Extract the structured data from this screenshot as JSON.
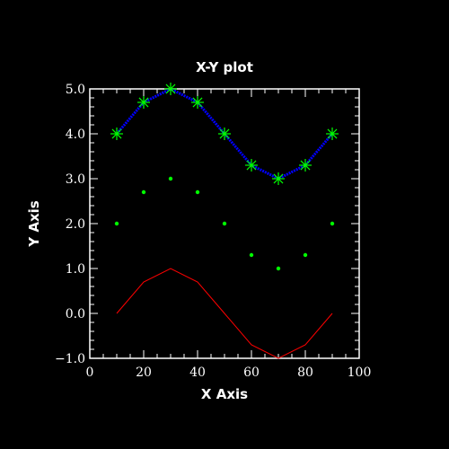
{
  "chart_data": {
    "type": "line",
    "title": "X-Y plot",
    "xlabel": "X Axis",
    "ylabel": "Y Axis",
    "xlim": [
      0,
      100
    ],
    "ylim": [
      -1.0,
      5.0
    ],
    "x_ticks": [
      "0",
      "20",
      "40",
      "60",
      "80",
      "100"
    ],
    "x_tick_values": [
      0,
      20,
      40,
      60,
      80,
      100
    ],
    "y_ticks": [
      "−1.0",
      "0.0",
      "1.0",
      "2.0",
      "3.0",
      "4.0",
      "5.0"
    ],
    "y_tick_values": [
      -1,
      0,
      1,
      2,
      3,
      4,
      5
    ],
    "grid": false,
    "x": [
      10,
      20,
      30,
      40,
      50,
      60,
      70,
      80,
      90
    ],
    "series": [
      {
        "style": "line+star",
        "line_color": "#0000ff",
        "marker_color": "#00ff00",
        "values": [
          4.0,
          4.7,
          5.0,
          4.7,
          4.0,
          3.3,
          3.0,
          3.3,
          4.0
        ]
      },
      {
        "style": "dots",
        "marker_color": "#00ff00",
        "values": [
          2.0,
          2.7,
          3.0,
          2.7,
          2.0,
          1.3,
          1.0,
          1.3,
          2.0
        ]
      },
      {
        "style": "line",
        "line_color": "#ff0000",
        "values": [
          0.0,
          0.7,
          1.0,
          0.7,
          0.0,
          -0.7,
          -1.0,
          -0.7,
          0.0
        ]
      }
    ]
  }
}
